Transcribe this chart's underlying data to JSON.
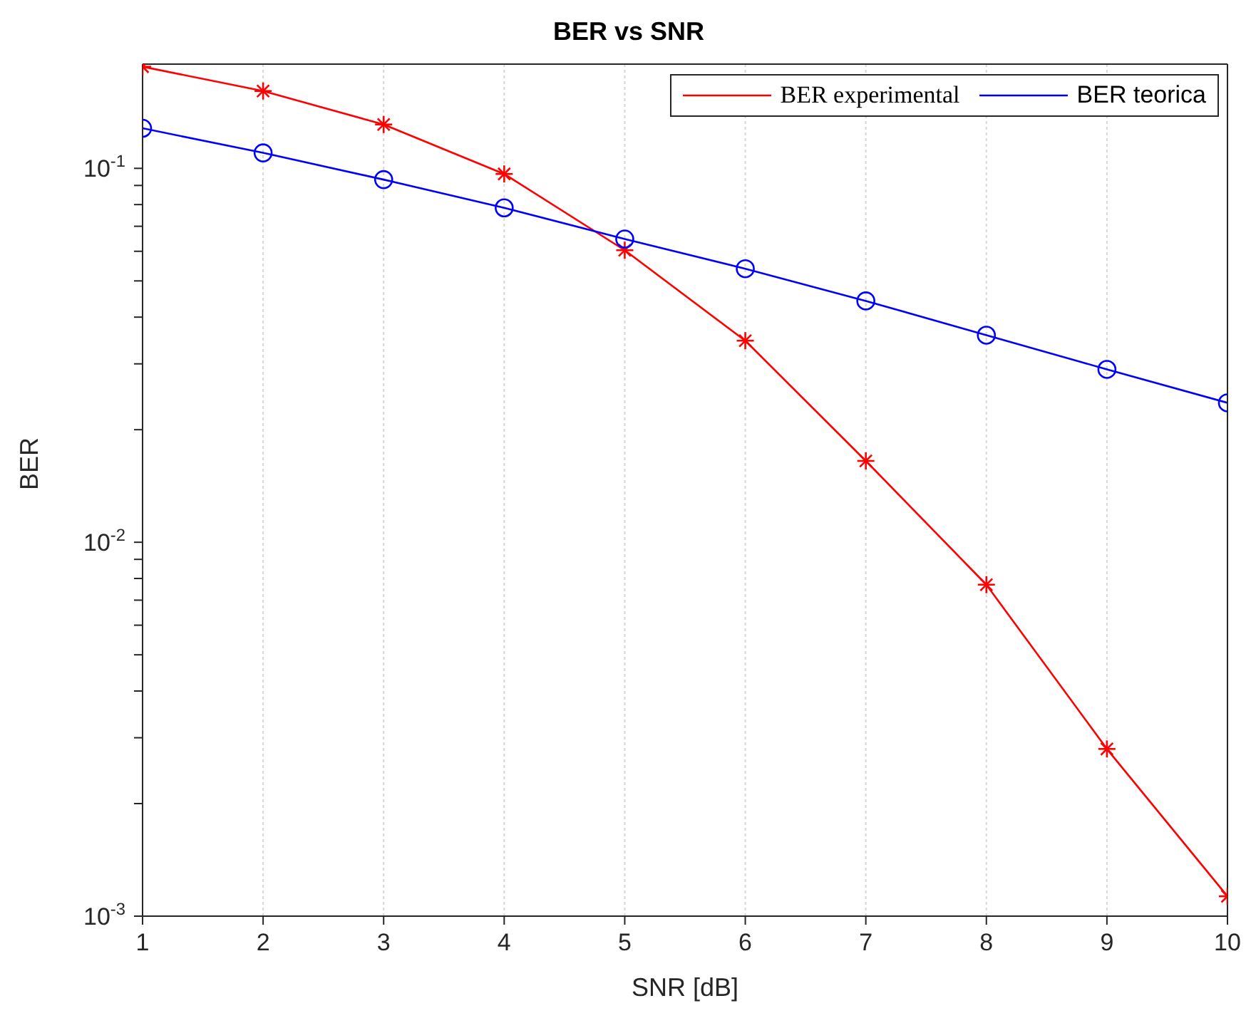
{
  "chart_data": {
    "type": "line",
    "title": "BER vs SNR",
    "xlabel": "SNR [dB]",
    "ylabel": "BER",
    "x": [
      1,
      2,
      3,
      4,
      5,
      6,
      7,
      8,
      9,
      10
    ],
    "series": [
      {
        "name": "BER experimental",
        "color": "#ff0000",
        "marker": "cross",
        "values": [
          0.187,
          0.161,
          0.131,
          0.0966,
          0.0604,
          0.0346,
          0.0165,
          0.0077,
          0.0028,
          0.00113
        ]
      },
      {
        "name": "BER teorica",
        "color": "#0000ff",
        "marker": "circle",
        "values": [
          0.128,
          0.11,
          0.0933,
          0.0784,
          0.0647,
          0.0539,
          0.0442,
          0.0358,
          0.029,
          0.0236
        ]
      }
    ],
    "log": "y",
    "xlim": [
      1,
      10
    ],
    "xticks": [
      1,
      2,
      3,
      4,
      5,
      6,
      7,
      8,
      9,
      10
    ],
    "ylim": [
      0.001,
      0.19
    ],
    "yticks": [
      {
        "value": 0.001,
        "label": "10$^{-3}$"
      },
      {
        "value": 0.002,
        "label": null
      },
      {
        "value": 0.003,
        "label": null
      },
      {
        "value": 0.004,
        "label": null
      },
      {
        "value": 0.005,
        "label": null
      },
      {
        "value": 0.006,
        "label": null
      },
      {
        "value": 0.007,
        "label": null
      },
      {
        "value": 0.008,
        "label": null
      },
      {
        "value": 0.009,
        "label": null
      },
      {
        "value": 0.01,
        "label": "10$^{-2}$"
      },
      {
        "value": 0.02,
        "label": null
      },
      {
        "value": 0.03,
        "label": null
      },
      {
        "value": 0.04,
        "label": null
      },
      {
        "value": 0.05,
        "label": null
      },
      {
        "value": 0.06,
        "label": null
      },
      {
        "value": 0.07,
        "label": null
      },
      {
        "value": 0.08,
        "label": null
      },
      {
        "value": 0.09,
        "label": null
      },
      {
        "value": 0.1,
        "label": "10$^{-1}$"
      }
    ],
    "grid": true,
    "legend": "top right"
  }
}
